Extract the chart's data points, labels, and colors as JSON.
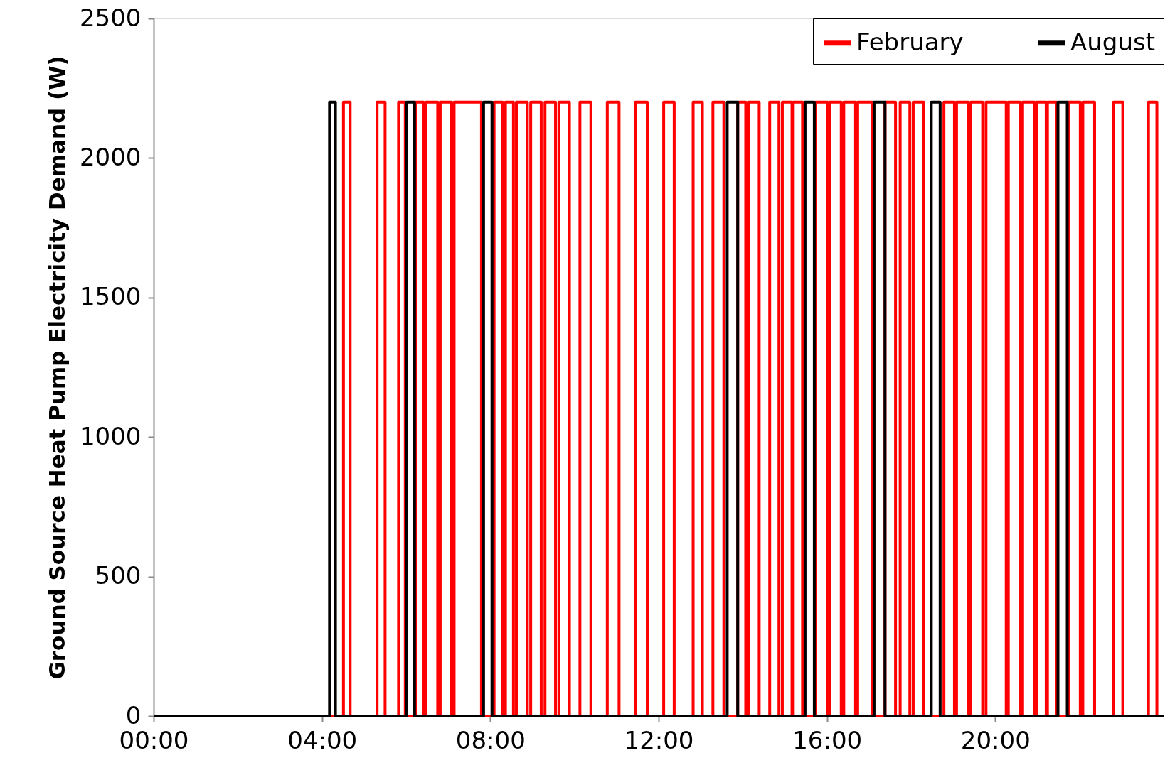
{
  "chart_data": {
    "type": "step",
    "ylabel": "Ground Source Heat Pump Electricity Demand (W)",
    "xlim": [
      0,
      24
    ],
    "xticks": [
      {
        "value": 0,
        "label": "00:00"
      },
      {
        "value": 4,
        "label": "04:00"
      },
      {
        "value": 8,
        "label": "08:00"
      },
      {
        "value": 12,
        "label": "12:00"
      },
      {
        "value": 16,
        "label": "16:00"
      },
      {
        "value": 20,
        "label": "20:00"
      }
    ],
    "ylim": [
      0,
      2500
    ],
    "yticks": [
      0,
      500,
      1000,
      1500,
      2000,
      2500
    ],
    "grid": false,
    "legend": "top right",
    "line_style": "solid",
    "series": [
      {
        "name": "February",
        "color": "#ff0000",
        "x": [
          0,
          4.51,
          4.67,
          5.31,
          5.5,
          5.82,
          5.98,
          6.22,
          6.41,
          6.47,
          6.75,
          6.81,
          7.08,
          7.14,
          7.79,
          8.09,
          8.29,
          8.36,
          8.55,
          8.62,
          8.88,
          8.96,
          9.21,
          9.3,
          9.55,
          9.63,
          9.88,
          10.13,
          10.39,
          10.78,
          11.06,
          11.45,
          11.73,
          12.12,
          12.37,
          12.82,
          13.04,
          13.29,
          13.55,
          13.88,
          14.07,
          14.13,
          14.39,
          14.64,
          14.86,
          14.94,
          15.17,
          15.2,
          15.42,
          15.73,
          16.01,
          16.06,
          16.34,
          16.4,
          16.68,
          16.73,
          17.07,
          17.38,
          17.63,
          17.74,
          17.97,
          18.05,
          18.3,
          18.78,
          19.03,
          19.08,
          19.36,
          19.42,
          19.7,
          19.78,
          20.26,
          20.31,
          20.59,
          20.65,
          20.93,
          20.98,
          21.21,
          21.24,
          21.46,
          21.74,
          22.02,
          22.08,
          22.36,
          22.81,
          23.03,
          23.64,
          23.84,
          24
        ],
        "values": [
          0,
          2200,
          0,
          2200,
          0,
          2200,
          0,
          2200,
          0,
          2200,
          0,
          2200,
          0,
          2200,
          0,
          2200,
          0,
          2200,
          0,
          2200,
          0,
          2200,
          0,
          2200,
          0,
          2200,
          0,
          2200,
          0,
          2200,
          0,
          2200,
          0,
          2200,
          0,
          2200,
          0,
          2200,
          0,
          2200,
          0,
          2200,
          0,
          2200,
          0,
          2200,
          0,
          2200,
          0,
          2200,
          0,
          2200,
          0,
          2200,
          0,
          2200,
          0,
          2200,
          0,
          2200,
          0,
          2200,
          0,
          2200,
          0,
          2200,
          0,
          2200,
          0,
          2200,
          0,
          2200,
          0,
          2200,
          0,
          2200,
          0,
          2200,
          0,
          2200,
          0,
          2200,
          0,
          2200,
          0,
          2200,
          0,
          0
        ]
      },
      {
        "name": "August",
        "color": "#000000",
        "x": [
          0,
          4.18,
          4.32,
          6.01,
          6.2,
          7.84,
          8.04,
          13.63,
          13.88,
          15.48,
          15.7,
          17.12,
          17.38,
          18.48,
          18.69,
          21.49,
          21.71,
          24
        ],
        "values": [
          0,
          2200,
          0,
          2200,
          0,
          2200,
          0,
          2200,
          0,
          2200,
          0,
          2200,
          0,
          2200,
          0,
          2200,
          0,
          0
        ]
      }
    ]
  }
}
